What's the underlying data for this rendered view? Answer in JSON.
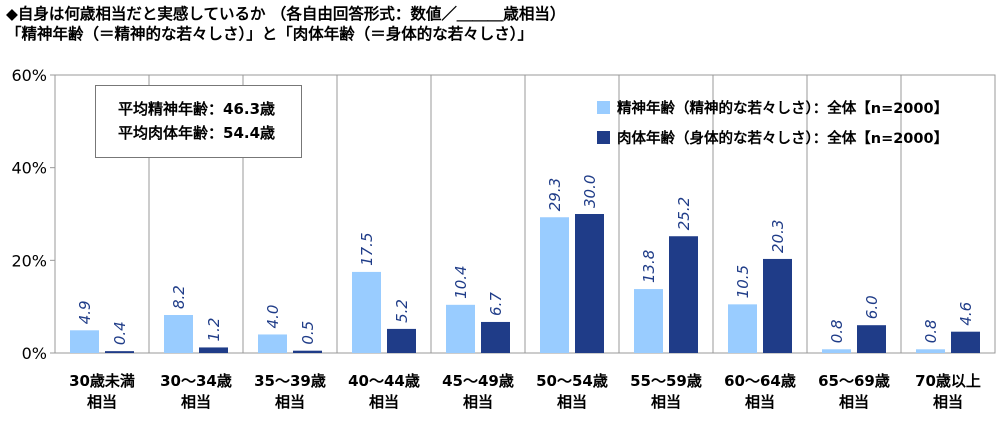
{
  "header": {
    "line1": "◆自身は何歳相当だと実感しているか （各自由回答形式：数値／＿＿＿歳相当）",
    "line2": "「精神年齢（＝精神的な若々しさ）」と「肉体年齢（＝身体的な若々しさ）」"
  },
  "summary": {
    "mental_avg": "平均精神年齢：46.3歳",
    "physical_avg": "平均肉体年齢：54.4歳"
  },
  "colors": {
    "mental": "#99ccff",
    "physical": "#1f3c88",
    "label_text": "#1f3c88",
    "grid": "#999999"
  },
  "chart_data": {
    "type": "bar",
    "categories": [
      [
        "30歳未満",
        "相当"
      ],
      [
        "30～34歳",
        "相当"
      ],
      [
        "35～39歳",
        "相当"
      ],
      [
        "40～44歳",
        "相当"
      ],
      [
        "45～49歳",
        "相当"
      ],
      [
        "50～54歳",
        "相当"
      ],
      [
        "55～59歳",
        "相当"
      ],
      [
        "60～64歳",
        "相当"
      ],
      [
        "65～69歳",
        "相当"
      ],
      [
        "70歳以上",
        "相当"
      ]
    ],
    "series": [
      {
        "name": "精神年齢（精神的な若々しさ）：全体【n=2000】",
        "values": [
          4.9,
          8.2,
          4.0,
          17.5,
          10.4,
          29.3,
          13.8,
          10.5,
          0.8,
          0.8
        ]
      },
      {
        "name": "肉体年齢（身体的な若々しさ）：全体【n=2000】",
        "values": [
          0.4,
          1.2,
          0.5,
          5.2,
          6.7,
          30.0,
          25.2,
          20.3,
          6.0,
          4.6
        ]
      }
    ],
    "y_ticks": [
      "0%",
      "20%",
      "40%",
      "60%"
    ],
    "ylim": [
      0,
      60
    ],
    "grid": "vertical separators",
    "legend_position": "top-right"
  }
}
